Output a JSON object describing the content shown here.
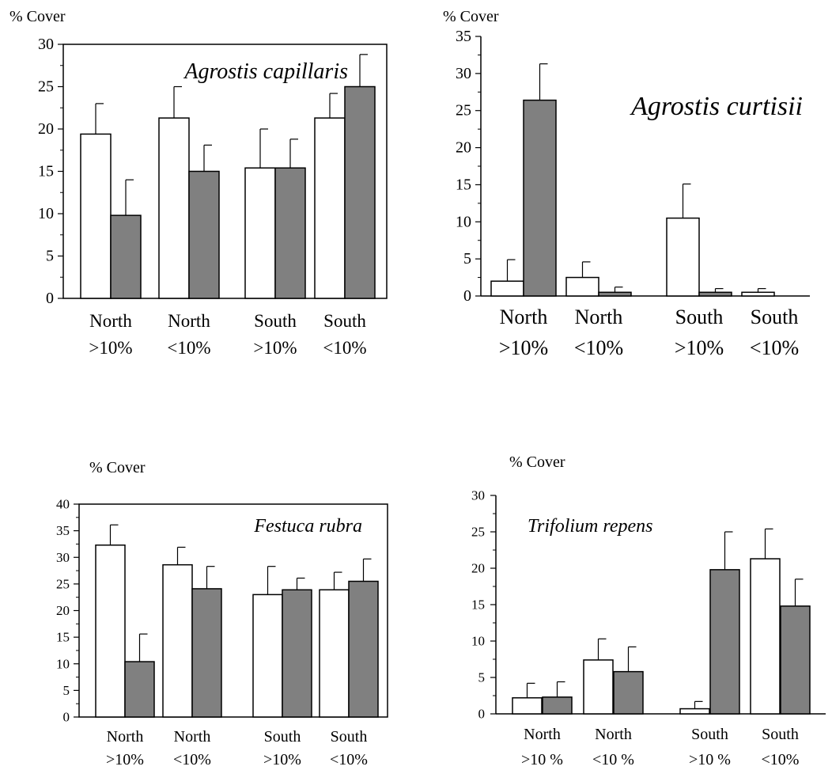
{
  "chart_data": [
    {
      "type": "bar",
      "title": "Agrostis capillaris",
      "ylabel": "% Cover",
      "ylim": [
        0,
        30
      ],
      "ytick_step": 5,
      "categories": [
        {
          "line1": "North",
          "line2": ">10%"
        },
        {
          "line1": "North",
          "line2": "<10%"
        },
        {
          "line1": "South",
          "line2": ">10%"
        },
        {
          "line1": "South",
          "line2": "<10%"
        }
      ],
      "series": [
        {
          "fill": "#ffffff",
          "values": [
            19.4,
            21.3,
            15.4,
            21.3
          ],
          "errors": [
            3.6,
            3.7,
            4.6,
            2.9
          ]
        },
        {
          "fill": "#808080",
          "values": [
            9.8,
            15.0,
            15.4,
            25.0
          ],
          "errors": [
            4.2,
            3.1,
            3.4,
            3.8
          ]
        }
      ]
    },
    {
      "type": "bar",
      "title": "Agrostis curtisii",
      "ylabel": "% Cover",
      "ylim": [
        0,
        35
      ],
      "ytick_step": 5,
      "categories": [
        {
          "line1": "North",
          "line2": ">10%"
        },
        {
          "line1": "North",
          "line2": "<10%"
        },
        {
          "line1": "South",
          "line2": ">10%"
        },
        {
          "line1": "South",
          "line2": "<10%"
        }
      ],
      "series": [
        {
          "fill": "#ffffff",
          "values": [
            2.0,
            2.5,
            10.5,
            0.5
          ],
          "errors": [
            2.9,
            2.1,
            4.6,
            0.5
          ]
        },
        {
          "fill": "#808080",
          "values": [
            26.4,
            0.5,
            0.5,
            0.0
          ],
          "errors": [
            4.9,
            0.7,
            0.5,
            0.0
          ]
        }
      ]
    },
    {
      "type": "bar",
      "title": "Festuca rubra",
      "ylabel": "% Cover",
      "ylim": [
        0,
        40
      ],
      "ytick_step": 5,
      "categories": [
        {
          "line1": "North",
          "line2": ">10%"
        },
        {
          "line1": "North",
          "line2": "<10%"
        },
        {
          "line1": "South",
          "line2": ">10%"
        },
        {
          "line1": "South",
          "line2": "<10%"
        }
      ],
      "series": [
        {
          "fill": "#ffffff",
          "values": [
            32.3,
            28.6,
            23.0,
            23.9
          ],
          "errors": [
            3.8,
            3.3,
            5.3,
            3.3
          ]
        },
        {
          "fill": "#808080",
          "values": [
            10.4,
            24.1,
            23.9,
            25.5
          ],
          "errors": [
            5.2,
            4.2,
            2.2,
            4.2
          ]
        }
      ]
    },
    {
      "type": "bar",
      "title": "Trifolium repens",
      "ylabel": "% Cover",
      "ylim": [
        0,
        30
      ],
      "ytick_step": 5,
      "categories": [
        {
          "line1": "North",
          "line2": ">10 %"
        },
        {
          "line1": "North",
          "line2": "<10 %"
        },
        {
          "line1": "South",
          "line2": ">10 %"
        },
        {
          "line1": "South",
          "line2": "<10%"
        }
      ],
      "series": [
        {
          "fill": "#ffffff",
          "values": [
            2.2,
            7.4,
            0.7,
            21.3
          ],
          "errors": [
            2.0,
            2.9,
            1.0,
            4.1
          ]
        },
        {
          "fill": "#808080",
          "values": [
            2.3,
            5.8,
            19.8,
            14.8
          ],
          "errors": [
            2.1,
            3.4,
            5.2,
            3.7
          ]
        }
      ]
    }
  ]
}
